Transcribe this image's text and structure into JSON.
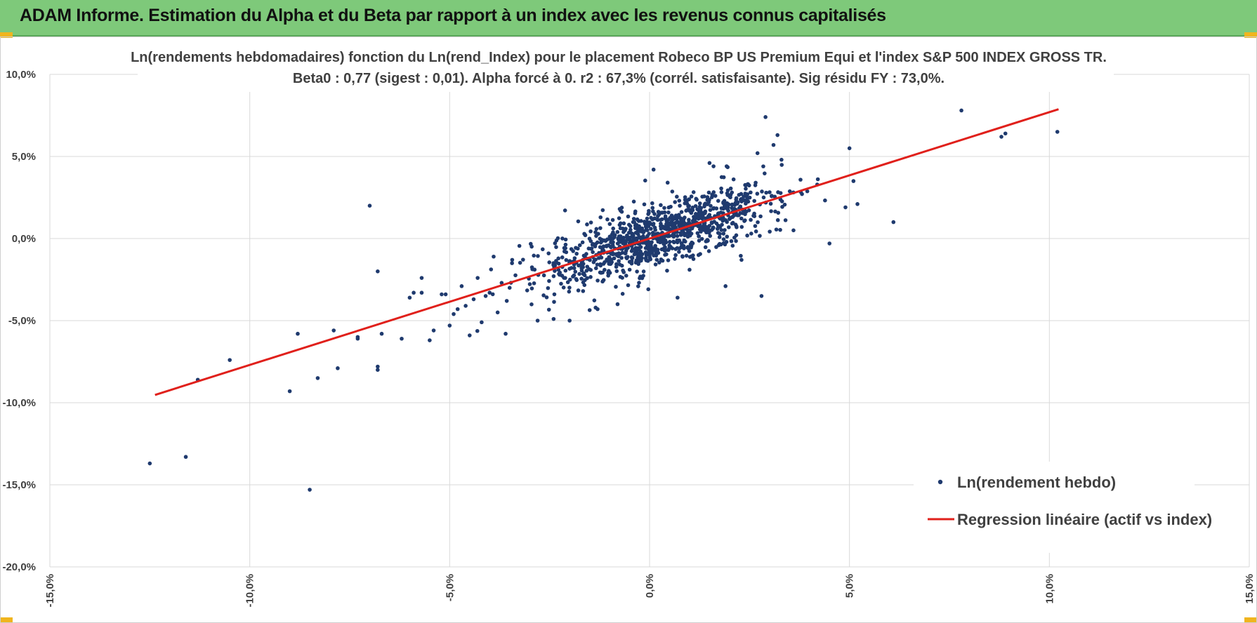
{
  "header": {
    "title": "ADAM Informe. Estimation du Alpha et du Beta par rapport à un index avec les revenus connus capitalisés",
    "background": "#7ec97a",
    "corner_color": "#f0b51e"
  },
  "chart_data": {
    "type": "scatter",
    "title_line1": "Ln(rendements hebdomadaires) fonction du Ln(rend_Index) pour le placement Robeco BP US Premium Equi et l'index S&P 500 INDEX GROSS TR.",
    "title_line2": "Beta0 : 0,77 (sigest : 0,01).  Alpha forcé à 0. r2 : 67,3% (corrél. satisfaisante). Sig résidu FY : 73,0%.",
    "xlim": [
      -0.15,
      0.15
    ],
    "ylim": [
      -0.2,
      0.1
    ],
    "x_ticks": [
      -0.15,
      -0.1,
      -0.05,
      0.0,
      0.05,
      0.1,
      0.15
    ],
    "x_tick_labels": [
      "-15,0%",
      "-10,0%",
      "-5,0%",
      "0,0%",
      "5,0%",
      "10,0%",
      "15,0%"
    ],
    "y_ticks": [
      0.1,
      0.05,
      0.0,
      -0.05,
      -0.1,
      -0.15,
      -0.2
    ],
    "y_tick_labels": [
      "10,0%",
      "5,0%",
      "0,0%",
      "-5,0%",
      "-10,0%",
      "-15,0%",
      "-20,0%"
    ],
    "grid": true,
    "legend_position": "bottom-right",
    "marker_color": "#1f3a6e",
    "line_color": "#e0201b",
    "series": [
      {
        "name": "Ln(rendement hebdo)",
        "kind": "scatter",
        "points": [
          [
            -0.125,
            -0.137
          ],
          [
            -0.116,
            -0.133
          ],
          [
            -0.085,
            -0.153
          ],
          [
            -0.113,
            -0.086
          ],
          [
            -0.09,
            -0.093
          ],
          [
            -0.105,
            -0.074
          ],
          [
            -0.088,
            -0.058
          ],
          [
            -0.083,
            -0.085
          ],
          [
            -0.078,
            -0.079
          ],
          [
            -0.079,
            -0.056
          ],
          [
            -0.073,
            -0.06
          ],
          [
            -0.073,
            -0.061
          ],
          [
            -0.068,
            -0.078
          ],
          [
            -0.068,
            -0.08
          ],
          [
            -0.067,
            -0.058
          ],
          [
            -0.07,
            0.02
          ],
          [
            -0.068,
            -0.02
          ],
          [
            -0.062,
            -0.061
          ],
          [
            -0.06,
            -0.036
          ],
          [
            -0.059,
            -0.033
          ],
          [
            -0.057,
            -0.024
          ],
          [
            -0.057,
            -0.033
          ],
          [
            -0.055,
            -0.062
          ],
          [
            -0.054,
            -0.056
          ],
          [
            -0.052,
            -0.034
          ],
          [
            -0.051,
            -0.034
          ],
          [
            -0.05,
            -0.053
          ],
          [
            -0.049,
            -0.046
          ],
          [
            -0.048,
            -0.043
          ],
          [
            -0.047,
            -0.029
          ],
          [
            -0.046,
            -0.041
          ],
          [
            -0.045,
            -0.059
          ],
          [
            -0.044,
            -0.037
          ],
          [
            -0.043,
            -0.024
          ],
          [
            -0.042,
            -0.051
          ],
          [
            -0.041,
            -0.035
          ],
          [
            -0.04,
            -0.033
          ],
          [
            -0.039,
            -0.011
          ],
          [
            -0.038,
            -0.045
          ],
          [
            -0.037,
            -0.027
          ],
          [
            -0.036,
            -0.058
          ],
          [
            -0.035,
            -0.03
          ],
          [
            0.078,
            0.078
          ],
          [
            0.088,
            0.062
          ],
          [
            0.089,
            0.064
          ],
          [
            0.102,
            0.065
          ],
          [
            0.061,
            0.01
          ],
          [
            0.029,
            0.074
          ],
          [
            0.045,
            -0.003
          ],
          [
            0.028,
            -0.035
          ],
          [
            0.019,
            -0.029
          ],
          [
            0.007,
            -0.036
          ],
          [
            -0.008,
            -0.04
          ],
          [
            -0.013,
            -0.043
          ],
          [
            -0.02,
            -0.05
          ],
          [
            -0.024,
            -0.049
          ],
          [
            -0.028,
            -0.05
          ],
          [
            0.001,
            0.042
          ],
          [
            0.015,
            0.046
          ],
          [
            0.016,
            0.044
          ],
          [
            0.032,
            0.063
          ],
          [
            0.031,
            0.057
          ],
          [
            0.033,
            0.048
          ],
          [
            0.027,
            0.052
          ],
          [
            0.05,
            0.055
          ],
          [
            0.051,
            0.035
          ],
          [
            0.049,
            0.019
          ],
          [
            0.052,
            0.021
          ],
          [
            0.036,
            0.005
          ],
          [
            0.023,
            -0.013
          ],
          [
            0.01,
            -0.019
          ],
          [
            -0.017,
            -0.018
          ]
        ]
      },
      {
        "name": "Regression linéaire (actif vs index)",
        "kind": "line",
        "beta": 0.77,
        "x_range": [
          -0.1237,
          0.1023
        ]
      }
    ]
  }
}
